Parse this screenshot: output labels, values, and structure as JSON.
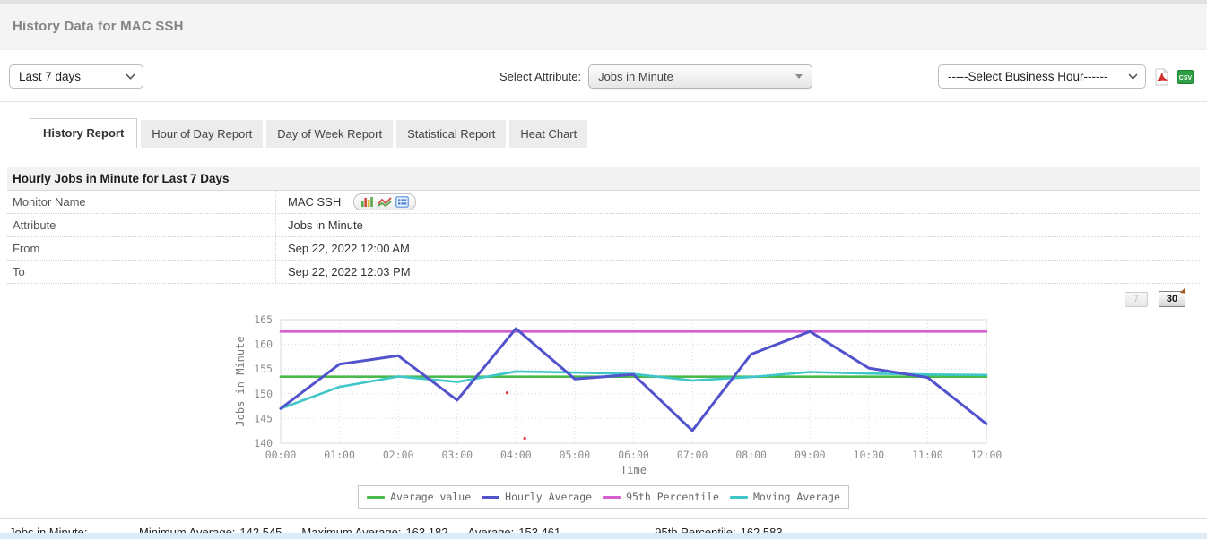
{
  "header": {
    "title": "History Data for MAC SSH"
  },
  "toolbar": {
    "time_range_value": "Last 7 days",
    "attribute_label": "Select Attribute:",
    "attribute_value": "Jobs in Minute",
    "business_hour_value": "-----Select Business Hour------",
    "csv_icon_label": "CSV"
  },
  "tabs": {
    "items": [
      {
        "label": "History Report",
        "active": true
      },
      {
        "label": "Hour of Day Report",
        "active": false
      },
      {
        "label": "Day of Week Report",
        "active": false
      },
      {
        "label": "Statistical Report",
        "active": false
      },
      {
        "label": "Heat Chart",
        "active": false
      }
    ]
  },
  "report": {
    "title": "Hourly Jobs in Minute for Last 7 Days",
    "rows": [
      {
        "label": "Monitor Name",
        "value": "MAC SSH"
      },
      {
        "label": "Attribute",
        "value": "Jobs in Minute"
      },
      {
        "label": "From",
        "value": "Sep 22, 2022 12:00 AM"
      },
      {
        "label": "To",
        "value": "Sep 22, 2022 12:03 PM"
      }
    ]
  },
  "period_buttons": {
    "seven": "7",
    "thirty": "30"
  },
  "chart_data": {
    "type": "line",
    "xlabel": "Time",
    "ylabel": "Jobs in Minute",
    "ylim": [
      140,
      165
    ],
    "ytick_step": 5,
    "grid": true,
    "legend_position": "bottom",
    "x_categories": [
      "00:00",
      "01:00",
      "02:00",
      "03:00",
      "04:00",
      "05:00",
      "06:00",
      "07:00",
      "08:00",
      "09:00",
      "10:00",
      "11:00",
      "12:00"
    ],
    "series": [
      {
        "name": "Average value",
        "color": "#4abb4a",
        "constant": 153.461
      },
      {
        "name": "Hourly Average",
        "color": "#5252cc",
        "values": [
          147.0,
          156.0,
          157.7,
          148.7,
          163.182,
          153.0,
          153.9,
          142.545,
          158.0,
          162.6,
          155.2,
          153.3,
          143.9
        ]
      },
      {
        "name": "95th Percentile",
        "color": "#d45fd0",
        "constant": 162.583
      },
      {
        "name": "Moving Average",
        "color": "#3fc6c9",
        "values": [
          147.0,
          151.4,
          153.5,
          152.4,
          154.5,
          154.3,
          154.0,
          152.7,
          153.4,
          154.4,
          154.1,
          153.9,
          153.8
        ]
      }
    ],
    "outlier_points": {
      "color": "#e03131",
      "points": [
        {
          "x": 3.85,
          "y": 150.2
        },
        {
          "x": 4.15,
          "y": 141.0
        }
      ]
    }
  },
  "summary": {
    "attribute_label": "Jobs in Minute:",
    "items": [
      {
        "label": "Minimum Average:",
        "value": "142.545"
      },
      {
        "label": "Maximum Average:",
        "value": "163.182"
      },
      {
        "label": "Average:",
        "value": "153.461"
      },
      {
        "label": "95th Percentile:",
        "value": "162.583"
      }
    ]
  }
}
